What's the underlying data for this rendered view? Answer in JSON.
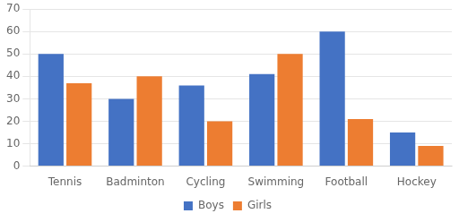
{
  "chart_data": {
    "type": "bar",
    "categories": [
      "Tennis",
      "Badminton",
      "Cycling",
      "Swimming",
      "Football",
      "Hockey"
    ],
    "series": [
      {
        "name": "Boys",
        "color": "#4472C4",
        "values": [
          50,
          30,
          36,
          41,
          60,
          15
        ]
      },
      {
        "name": "Girls",
        "color": "#ED7D31",
        "values": [
          37,
          40,
          20,
          50,
          21,
          9
        ]
      }
    ],
    "ylim": [
      0,
      70
    ],
    "yticks": [
      0,
      10,
      20,
      30,
      40,
      50,
      60,
      70
    ],
    "grid": true,
    "legend": "bottom"
  }
}
